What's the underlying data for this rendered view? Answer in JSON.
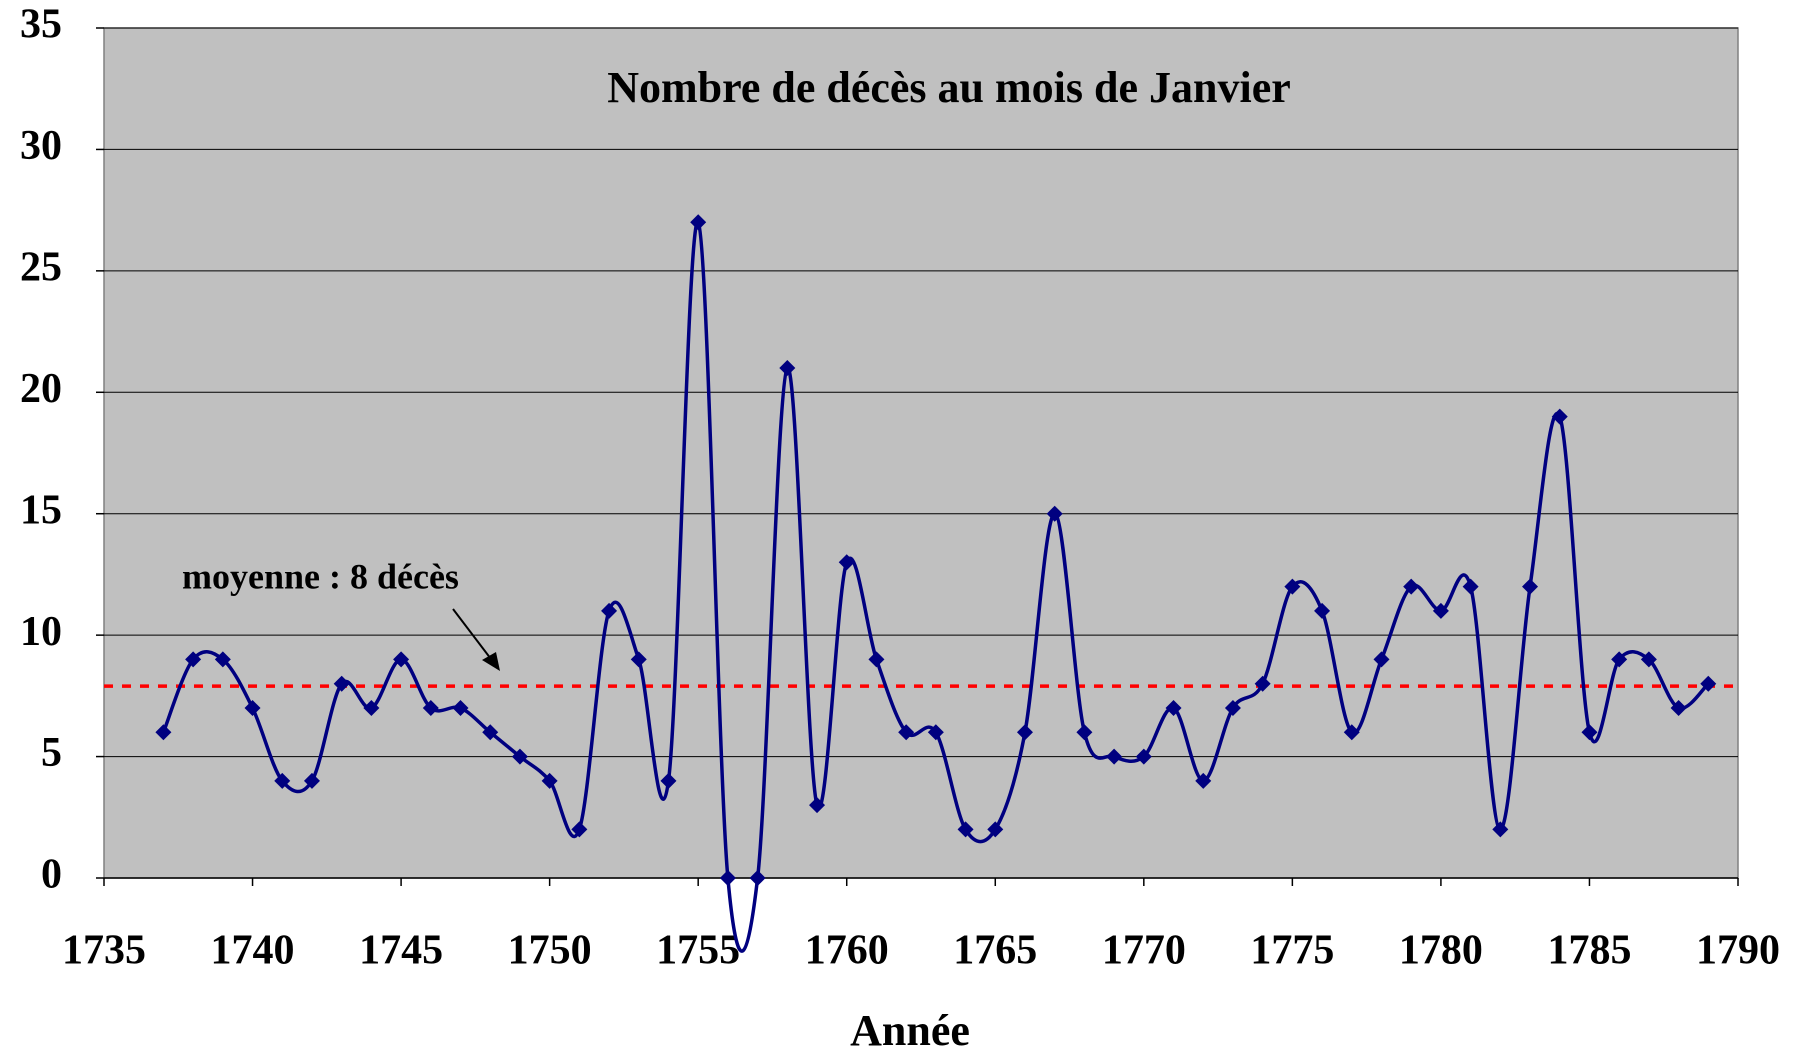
{
  "chart_data": {
    "type": "line",
    "title": "Nombre de décès au mois de Janvier",
    "xlabel": "Année",
    "x": [
      1737,
      1738,
      1739,
      1740,
      1741,
      1742,
      1743,
      1744,
      1745,
      1746,
      1747,
      1748,
      1749,
      1750,
      1751,
      1752,
      1753,
      1754,
      1755,
      1756,
      1757,
      1758,
      1759,
      1760,
      1761,
      1762,
      1763,
      1764,
      1765,
      1766,
      1767,
      1768,
      1769,
      1770,
      1771,
      1772,
      1773,
      1774,
      1775,
      1776,
      1777,
      1778,
      1779,
      1780,
      1781,
      1782,
      1783,
      1784,
      1785,
      1786,
      1787,
      1788,
      1789
    ],
    "series": [
      {
        "name": "Nombre de décès",
        "color": "#000080",
        "values": [
          6,
          9,
          9,
          7,
          4,
          4,
          8,
          7,
          9,
          7,
          7,
          6,
          5,
          4,
          2,
          11,
          9,
          4,
          27,
          0,
          0,
          21,
          3,
          13,
          9,
          6,
          6,
          2,
          2,
          6,
          15,
          6,
          5,
          5,
          7,
          4,
          7,
          8,
          12,
          11,
          6,
          9,
          12,
          11,
          12,
          2,
          12,
          19,
          6,
          9,
          9,
          7,
          8
        ]
      }
    ],
    "mean": {
      "value": 7.9,
      "color": "#ff0000",
      "label": "moyenne : 8 décès"
    },
    "xlim": [
      1735,
      1790
    ],
    "xticks": [
      1735,
      1740,
      1745,
      1750,
      1755,
      1760,
      1765,
      1770,
      1775,
      1780,
      1785,
      1790
    ],
    "ylim": [
      0,
      35
    ],
    "yticks": [
      0,
      5,
      10,
      15,
      20,
      25,
      30,
      35
    ],
    "grid": true,
    "smooth": true
  }
}
